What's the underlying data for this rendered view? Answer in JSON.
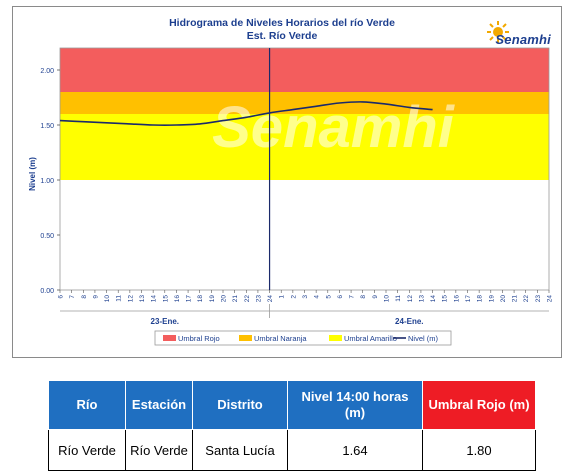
{
  "chart_data": {
    "type": "line",
    "title": "Hidrograma de Niveles Horarios del río Verde",
    "subtitle": "Est. Río Verde",
    "ylabel": "Nivel (m)",
    "ylim": [
      0,
      2.2
    ],
    "yticks": [
      "0.00",
      "0.50",
      "1.00",
      "1.50",
      "2.00"
    ],
    "ytick_values": [
      0,
      0.5,
      1.0,
      1.5,
      2.0
    ],
    "x_hour_labels": [
      "6",
      "7",
      "8",
      "9",
      "10",
      "11",
      "12",
      "13",
      "14",
      "15",
      "16",
      "17",
      "18",
      "19",
      "20",
      "21",
      "22",
      "23",
      "24",
      "1",
      "2",
      "3",
      "4",
      "5",
      "6",
      "7",
      "8",
      "9",
      "10",
      "11",
      "12",
      "13",
      "14",
      "15",
      "16",
      "17",
      "18",
      "19",
      "20",
      "21",
      "22",
      "23",
      "24"
    ],
    "day_labels": [
      "23-Ene.",
      "24-Ene."
    ],
    "grid": false,
    "legend_position": "bottom",
    "bands": [
      {
        "name": "Umbral Rojo",
        "from": 1.8,
        "to": 2.2,
        "color": "#f35d5d"
      },
      {
        "name": "Umbral Naranja",
        "from": 1.6,
        "to": 1.8,
        "color": "#ffc000"
      },
      {
        "name": "Umbral Amarillo",
        "from": 1.0,
        "to": 1.6,
        "color": "#ffff00"
      }
    ],
    "series": [
      {
        "name": "Nivel (m)",
        "color": "#1b2a6b",
        "x": [
          0,
          2,
          4,
          6,
          8,
          10,
          12,
          14,
          16,
          18,
          20,
          22,
          24,
          26,
          28,
          30,
          32
        ],
        "values": [
          1.54,
          1.53,
          1.52,
          1.51,
          1.5,
          1.5,
          1.51,
          1.54,
          1.57,
          1.61,
          1.64,
          1.67,
          1.7,
          1.71,
          1.69,
          1.66,
          1.64
        ]
      }
    ],
    "legend": [
      {
        "label": "Umbral Rojo",
        "color": "#f35d5d",
        "kind": "box"
      },
      {
        "label": "Umbral Naranja",
        "color": "#ffc000",
        "kind": "box"
      },
      {
        "label": "Umbral Amarillo",
        "color": "#ffff00",
        "kind": "box"
      },
      {
        "label": "Nivel (m)",
        "color": "#1b2a6b",
        "kind": "line"
      }
    ],
    "watermark": "Senamhi"
  },
  "logo": {
    "text": "Senamhi",
    "sun_color": "#f2a900"
  },
  "table": {
    "headers": [
      "Río",
      "Estación",
      "Distrito",
      "Nivel 14:00 horas (m)",
      "Umbral Rojo (m)"
    ],
    "row": [
      "Río Verde",
      "Río Verde",
      "Santa Lucía",
      "1.64",
      "1.80"
    ],
    "header_color": "#1f6fc1",
    "header_alert_color": "#ee1c25"
  }
}
